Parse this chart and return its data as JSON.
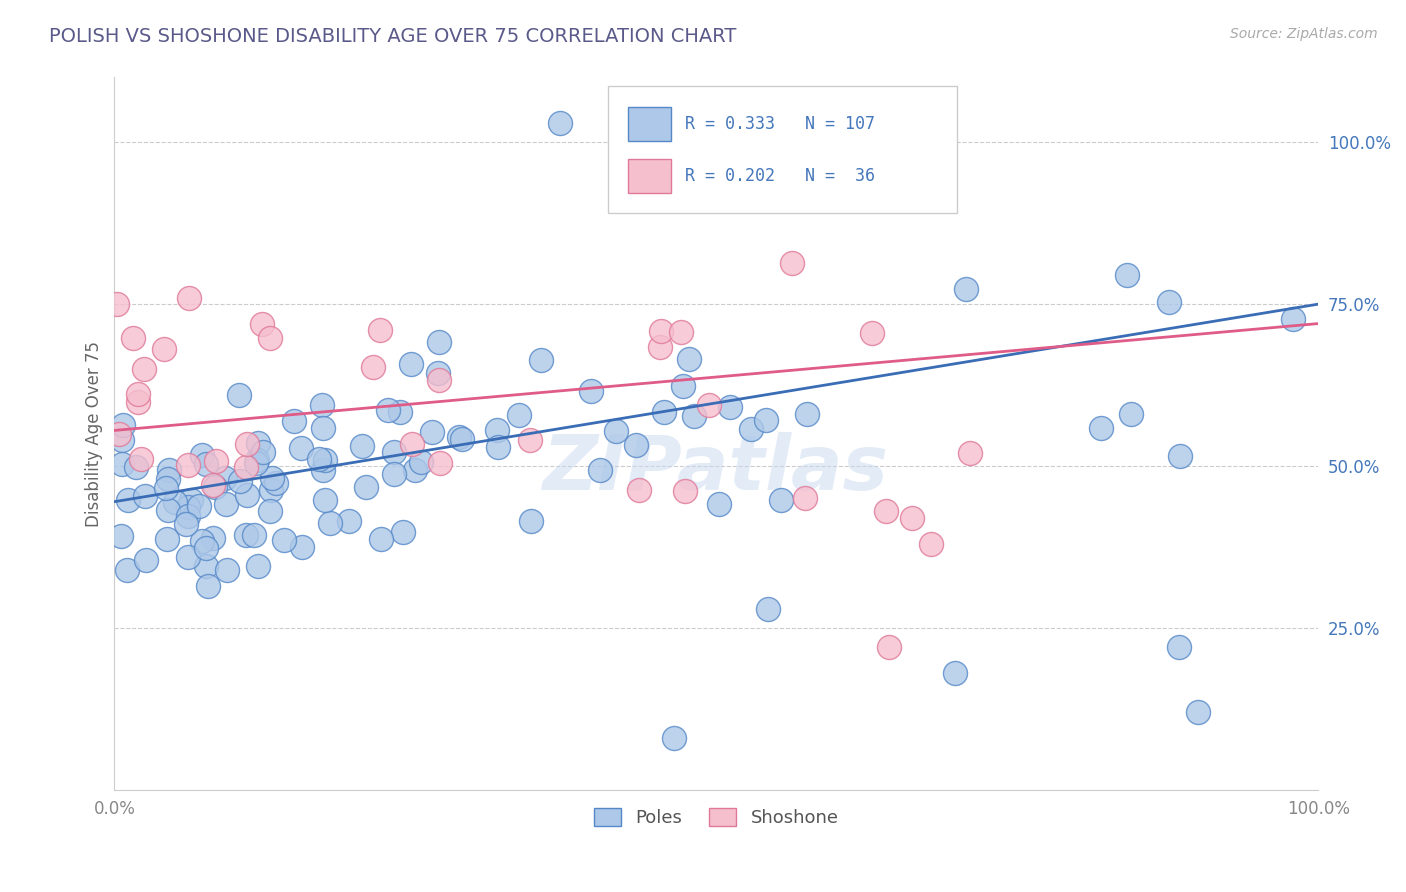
{
  "title": "POLISH VS SHOSHONE DISABILITY AGE OVER 75 CORRELATION CHART",
  "source_text": "Source: ZipAtlas.com",
  "ylabel": "Disability Age Over 75",
  "xlim": [
    0,
    1
  ],
  "ylim": [
    0.0,
    1.1
  ],
  "yticks": [
    0.25,
    0.5,
    0.75,
    1.0
  ],
  "ytick_labels": [
    "25.0%",
    "50.0%",
    "75.0%",
    "100.0%"
  ],
  "xtick_labels": [
    "0.0%",
    "",
    "",
    "",
    "100.0%"
  ],
  "legend_label1": "Poles",
  "legend_label2": "Shoshone",
  "blue_fill": "#adc8e8",
  "pink_fill": "#f5bfce",
  "blue_edge": "#5588c8",
  "pink_edge": "#e07898",
  "blue_line_color": "#3a6db5",
  "pink_line_color": "#e05c88",
  "blue_line_y0": 0.445,
  "blue_line_y1": 0.75,
  "pink_line_y0": 0.555,
  "pink_line_y1": 0.72,
  "watermark": "ZIPat las",
  "background_color": "#ffffff",
  "title_color": "#5a5a8a",
  "grid_color": "#cccccc",
  "tick_label_color": "#4477bb",
  "r1_text": "R = 0.333",
  "n1_text": "N = 107",
  "r2_text": "R = 0.202",
  "n2_text": "N =  36"
}
